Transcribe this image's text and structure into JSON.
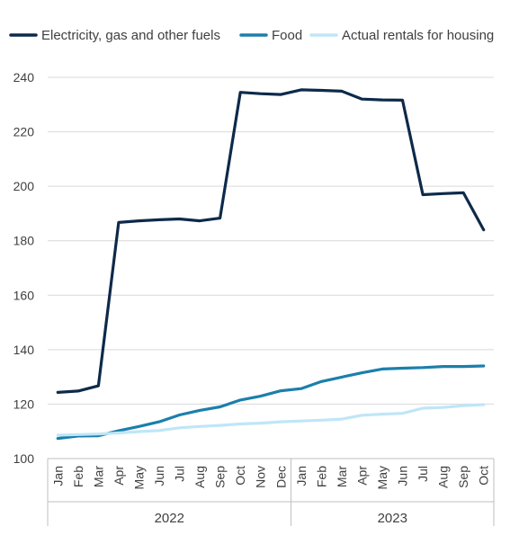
{
  "chart_data": {
    "type": "line",
    "categories": [
      "Jan",
      "Feb",
      "Mar",
      "Apr",
      "May",
      "Jun",
      "Jul",
      "Aug",
      "Sep",
      "Oct",
      "Nov",
      "Dec",
      "Jan",
      "Feb",
      "Mar",
      "Apr",
      "May",
      "Jun",
      "Jul",
      "Aug",
      "Sep",
      "Oct"
    ],
    "years": [
      {
        "label": "2022",
        "start": 0,
        "end": 11
      },
      {
        "label": "2023",
        "start": 12,
        "end": 21
      }
    ],
    "ylim": [
      100,
      250
    ],
    "yticks": [
      100,
      120,
      140,
      160,
      180,
      200,
      220,
      240
    ],
    "grid": true,
    "legend_position": "top",
    "series": [
      {
        "name": "Electricity, gas and other fuels",
        "color": "#0d2a4a",
        "values": [
          124.3,
          124.8,
          126.7,
          186.7,
          187.3,
          187.7,
          188.0,
          187.3,
          188.3,
          234.5,
          234.0,
          233.7,
          235.4,
          235.2,
          234.9,
          232.0,
          231.7,
          231.6,
          196.9,
          197.3,
          197.6,
          184.0
        ]
      },
      {
        "name": "Food",
        "color": "#1b7fac",
        "values": [
          107.4,
          108.3,
          108.4,
          110.2,
          111.8,
          113.5,
          116.0,
          117.7,
          119.0,
          121.5,
          122.9,
          124.9,
          125.7,
          128.3,
          129.9,
          131.5,
          132.9,
          133.2,
          133.4,
          133.8,
          133.8,
          134.0
        ]
      },
      {
        "name": "Actual rentals for housing",
        "color": "#bfe6f7",
        "values": [
          108.6,
          108.8,
          109.0,
          109.4,
          109.9,
          110.3,
          111.3,
          111.8,
          112.2,
          112.7,
          113.0,
          113.5,
          113.8,
          114.1,
          114.5,
          115.9,
          116.3,
          116.6,
          118.5,
          118.8,
          119.4,
          119.8
        ]
      }
    ]
  }
}
